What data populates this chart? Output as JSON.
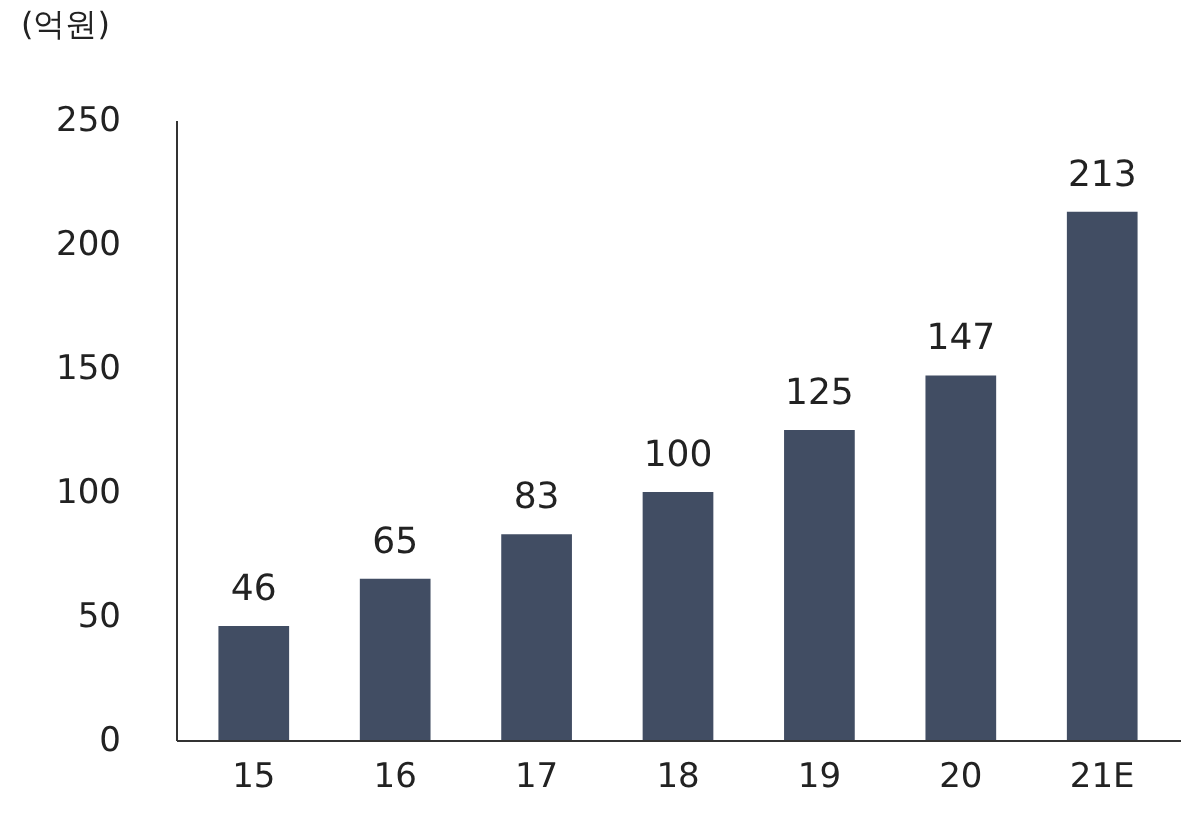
{
  "chart_data": {
    "type": "bar",
    "ylabel": "(억원)",
    "categories": [
      "15",
      "16",
      "17",
      "18",
      "19",
      "20",
      "21E"
    ],
    "values": [
      46,
      65,
      83,
      100,
      125,
      147,
      213
    ],
    "color": "#414d63",
    "ylim": [
      0,
      250
    ],
    "yticks": [
      0,
      50,
      100,
      150,
      200,
      250
    ],
    "grid": false,
    "data_labels": true
  }
}
